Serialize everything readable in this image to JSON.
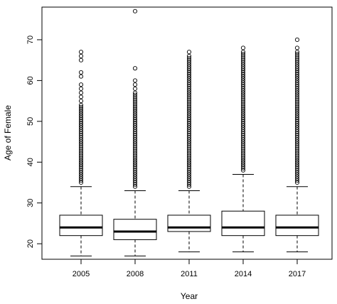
{
  "chart_data": {
    "type": "box",
    "xlabel": "Year",
    "ylabel": "Age of Female",
    "categories": [
      "2005",
      "2008",
      "2011",
      "2014",
      "2017"
    ],
    "yticks": [
      20,
      30,
      40,
      50,
      60,
      70
    ],
    "ylim": [
      16.2,
      78
    ],
    "boxes": [
      {
        "category": "2005",
        "whisker_low": 17,
        "q1": 22,
        "median": 24,
        "q3": 27,
        "whisker_high": 34,
        "outliers": [
          35,
          35.5,
          36,
          36.5,
          37,
          37.5,
          38,
          38.5,
          39,
          39.5,
          40,
          40.5,
          41,
          41.5,
          42,
          42.5,
          43,
          43.5,
          44,
          44.5,
          45,
          45.5,
          46,
          46.5,
          47,
          47.5,
          48,
          48.5,
          49,
          49.5,
          50,
          50.5,
          51,
          51.5,
          52,
          52.5,
          53,
          53.5,
          54,
          55,
          56,
          57,
          58,
          59,
          61,
          62,
          65,
          66,
          67
        ]
      },
      {
        "category": "2008",
        "whisker_low": 17,
        "q1": 21,
        "median": 23,
        "q3": 26,
        "whisker_high": 33,
        "outliers": [
          34,
          34.5,
          35,
          35.5,
          36,
          36.5,
          37,
          37.5,
          38,
          38.5,
          39,
          39.5,
          40,
          40.5,
          41,
          41.5,
          42,
          42.5,
          43,
          43.5,
          44,
          44.5,
          45,
          45.5,
          46,
          46.5,
          47,
          47.5,
          48,
          48.5,
          49,
          49.5,
          50,
          50.5,
          51,
          51.5,
          52,
          52.5,
          53,
          53.5,
          54,
          54.5,
          55,
          55.5,
          56,
          56.5,
          57,
          58,
          59,
          60,
          63,
          77
        ]
      },
      {
        "category": "2011",
        "whisker_low": 18,
        "q1": 23,
        "median": 24,
        "q3": 27,
        "whisker_high": 33,
        "outliers": [
          34,
          34.5,
          35,
          35.5,
          36,
          36.5,
          37,
          37.5,
          38,
          38.5,
          39,
          39.5,
          40,
          40.5,
          41,
          41.5,
          42,
          42.5,
          43,
          43.5,
          44,
          44.5,
          45,
          45.5,
          46,
          46.5,
          47,
          47.5,
          48,
          48.5,
          49,
          49.5,
          50,
          50.5,
          51,
          51.5,
          52,
          52.5,
          53,
          53.5,
          54,
          54.5,
          55,
          55.5,
          56,
          56.5,
          57,
          57.5,
          58,
          58.5,
          59,
          59.5,
          60,
          60.5,
          61,
          61.5,
          62,
          62.5,
          63,
          63.5,
          64,
          64.5,
          65,
          65.5,
          66,
          67
        ]
      },
      {
        "category": "2014",
        "whisker_low": 18,
        "q1": 22,
        "median": 24,
        "q3": 28,
        "whisker_high": 37,
        "outliers": [
          38,
          38.5,
          39,
          39.5,
          40,
          40.5,
          41,
          41.5,
          42,
          42.5,
          43,
          43.5,
          44,
          44.5,
          45,
          45.5,
          46,
          46.5,
          47,
          47.5,
          48,
          48.5,
          49,
          49.5,
          50,
          50.5,
          51,
          51.5,
          52,
          52.5,
          53,
          53.5,
          54,
          54.5,
          55,
          55.5,
          56,
          56.5,
          57,
          57.5,
          58,
          58.5,
          59,
          59.5,
          60,
          60.5,
          61,
          61.5,
          62,
          62.5,
          63,
          63.5,
          64,
          64.5,
          65,
          65.5,
          66,
          66.5,
          67,
          68
        ]
      },
      {
        "category": "2017",
        "whisker_low": 18,
        "q1": 22,
        "median": 24,
        "q3": 27,
        "whisker_high": 34,
        "outliers": [
          35,
          35.5,
          36,
          36.5,
          37,
          37.5,
          38,
          38.5,
          39,
          39.5,
          40,
          40.5,
          41,
          41.5,
          42,
          42.5,
          43,
          43.5,
          44,
          44.5,
          45,
          45.5,
          46,
          46.5,
          47,
          47.5,
          48,
          48.5,
          49,
          49.5,
          50,
          50.5,
          51,
          51.5,
          52,
          52.5,
          53,
          53.5,
          54,
          54.5,
          55,
          55.5,
          56,
          56.5,
          57,
          57.5,
          58,
          58.5,
          59,
          59.5,
          60,
          60.5,
          61,
          61.5,
          62,
          62.5,
          63,
          63.5,
          64,
          64.5,
          65,
          65.5,
          66,
          66.5,
          67,
          68,
          70
        ]
      }
    ],
    "grid": false,
    "legend": "none"
  }
}
